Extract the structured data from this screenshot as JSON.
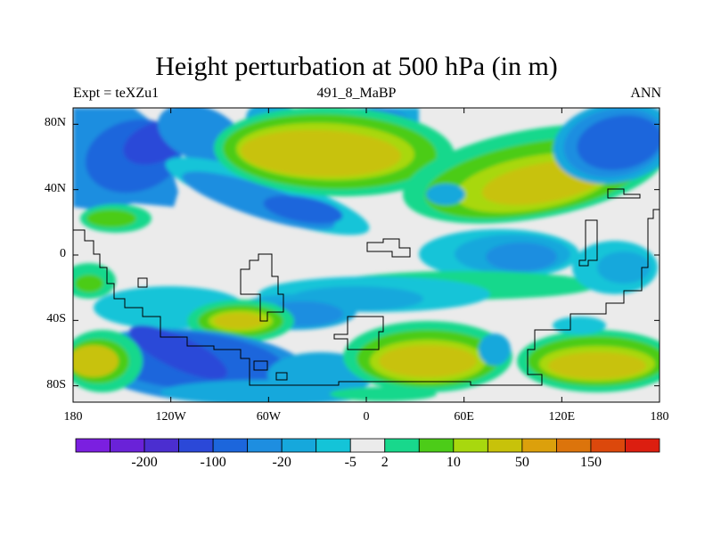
{
  "title": "Height perturbation at 500 hPa (in m)",
  "subtitle_left": "Expt = teXZu1",
  "subtitle_center": "491_8_MaBP",
  "subtitle_right": "ANN",
  "y_axis": {
    "labels": [
      "80N",
      "40N",
      "0",
      "40S",
      "80S"
    ],
    "values": [
      80,
      40,
      0,
      -40,
      -80
    ],
    "range": [
      -90,
      90
    ]
  },
  "x_axis": {
    "labels": [
      "180",
      "120W",
      "60W",
      "0",
      "60E",
      "120E",
      "180"
    ],
    "values": [
      -180,
      -120,
      -60,
      0,
      60,
      120,
      180
    ],
    "range": [
      -180,
      180
    ]
  },
  "colorbar": {
    "colors": [
      "#7b1fe0",
      "#6a22d8",
      "#4b2ed0",
      "#2b48d8",
      "#1c66dc",
      "#1e8ee0",
      "#16a8dc",
      "#14c4d8",
      "#ebebeb",
      "#18d88c",
      "#4ccc18",
      "#a8d80e",
      "#c8c20a",
      "#dca00c",
      "#dc740c",
      "#dc480c",
      "#dc1e10"
    ],
    "labels": [
      "-200",
      "-100",
      "-20",
      "-5",
      "2",
      "10",
      "50",
      "150"
    ],
    "label_after_box": [
      1,
      3,
      5,
      7,
      8,
      10,
      12,
      14
    ]
  },
  "map_colors": {
    "neutral": "#ebebeb",
    "green_lt": "#18d88c",
    "green": "#4ccc18",
    "yellow_green": "#a8d80e",
    "olive": "#c8c20a",
    "cyan": "#14c4d8",
    "blue_lt": "#16a8dc",
    "blue_md": "#1e8ee0",
    "blue": "#1c66dc",
    "blue_dk": "#2b48d8"
  }
}
